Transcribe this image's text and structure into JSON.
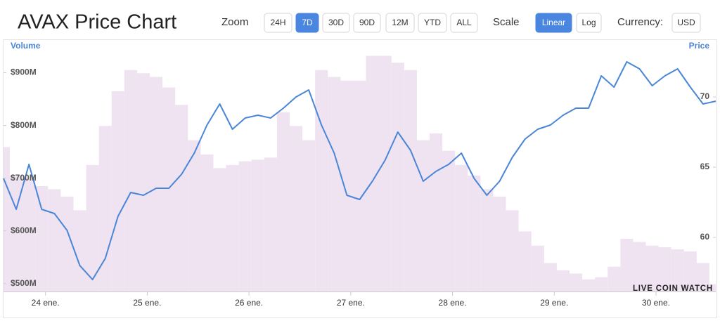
{
  "chart_data": {
    "type": "bar-line",
    "title": "AVAX Price Chart",
    "xlim": [
      0,
      56
    ],
    "xticks": [
      {
        "value": 3.3,
        "label": "24 ene."
      },
      {
        "value": 11.3,
        "label": "25 ene."
      },
      {
        "value": 19.3,
        "label": "26 ene."
      },
      {
        "value": 27.3,
        "label": "27 ene."
      },
      {
        "value": 35.3,
        "label": "28 ene."
      },
      {
        "value": 43.3,
        "label": "29 ene."
      },
      {
        "value": 51.3,
        "label": "30 ene."
      }
    ],
    "ylim": [
      485000000,
      958000000
    ],
    "yticks": [
      {
        "value": 500000000,
        "label": "$500M"
      },
      {
        "value": 600000000,
        "label": "$600M"
      },
      {
        "value": 700000000,
        "label": "$700M"
      },
      {
        "value": 800000000,
        "label": "$800M"
      },
      {
        "value": 900000000,
        "label": "$900M"
      }
    ],
    "y2lim": [
      56.15,
      73.9
    ],
    "y2ticks": [
      60,
      65,
      70
    ],
    "series": [
      {
        "name": "Volume",
        "color": "#efe2f1",
        "values": [
          759000000,
          705000000,
          699000000,
          685000000,
          679000000,
          665000000,
          639000000,
          725000000,
          799000000,
          865000000,
          905000000,
          899000000,
          892000000,
          872000000,
          839000000,
          772000000,
          745000000,
          719000000,
          725000000,
          732000000,
          735000000,
          739000000,
          825000000,
          799000000,
          772000000,
          905000000,
          892000000,
          885000000,
          885000000,
          932000000,
          932000000,
          919000000,
          905000000,
          772000000,
          785000000,
          752000000,
          725000000,
          705000000,
          679000000,
          665000000,
          639000000,
          599000000,
          572000000,
          539000000,
          525000000,
          519000000,
          508000000,
          512000000,
          532000000,
          585000000,
          579000000,
          572000000,
          569000000,
          565000000,
          561000000,
          539000000,
          499000000
        ]
      },
      {
        "name": "Price",
        "color": "#4a86d8",
        "axis": "y2",
        "values": [
          64.2,
          62.0,
          65.2,
          62.0,
          61.7,
          60.5,
          58.0,
          57.0,
          58.5,
          61.5,
          63.2,
          63.0,
          63.5,
          63.5,
          64.5,
          66.0,
          68.0,
          69.5,
          67.7,
          68.5,
          68.7,
          68.5,
          69.2,
          70.0,
          70.5,
          68.0,
          66.0,
          63.0,
          62.7,
          64.0,
          65.5,
          67.5,
          66.2,
          64.0,
          64.7,
          65.2,
          66.0,
          64.2,
          63.0,
          64.0,
          65.7,
          67.0,
          67.7,
          68.0,
          68.7,
          69.2,
          69.2,
          71.5,
          70.7,
          72.5,
          72.0,
          70.8,
          71.5,
          72.0,
          70.7,
          69.5,
          69.7
        ]
      }
    ],
    "watermark": "LIVE COIN WATCH"
  },
  "toolbar": {
    "zoom": {
      "label": "Zoom",
      "options": [
        "24H",
        "7D",
        "30D",
        "90D",
        "12M",
        "YTD",
        "ALL"
      ]
    },
    "scale": {
      "label": "Scale",
      "options": [
        "Linear",
        "Log"
      ]
    },
    "currency": {
      "label": "Currency:",
      "value": "USD"
    }
  }
}
